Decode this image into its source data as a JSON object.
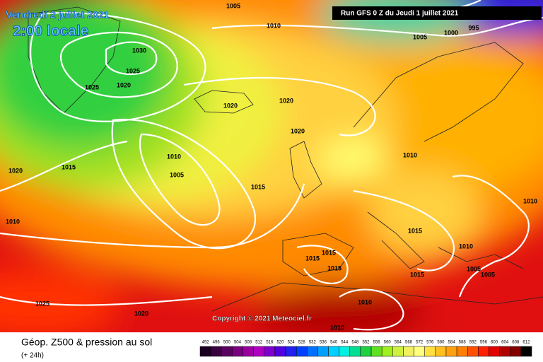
{
  "header": {
    "date": "Vendredi 2 juillet 2021",
    "time": "2:00 locale",
    "run": "Run GFS 0 Z du Jeudi 1 juillet 2021"
  },
  "footer": {
    "title": "Géop. Z500 & pression au sol",
    "subtitle": "(+ 24h)",
    "copyright": "Copyright © 2021 Meteociel.fr"
  },
  "legend": {
    "levels": [
      492,
      496,
      500,
      504,
      508,
      512,
      516,
      520,
      524,
      528,
      532,
      536,
      540,
      544,
      548,
      552,
      556,
      560,
      564,
      568,
      572,
      576,
      580,
      584,
      588,
      592,
      596,
      600,
      604,
      608,
      612
    ],
    "colors": [
      "#1a0020",
      "#3a0040",
      "#5a0060",
      "#7a0080",
      "#9a00a0",
      "#b000c0",
      "#8000d0",
      "#5000e0",
      "#2020f0",
      "#0040ff",
      "#0070ff",
      "#00a0ff",
      "#00d0ff",
      "#00f0e0",
      "#00e090",
      "#20d040",
      "#60e020",
      "#a0f020",
      "#d0f040",
      "#f0f060",
      "#ffff80",
      "#ffe040",
      "#ffc020",
      "#ffa010",
      "#ff8000",
      "#ff5000",
      "#ff2000",
      "#e00000",
      "#b00000",
      "#800000",
      "#000000"
    ]
  },
  "isobar_labels": [
    1005,
    1010,
    1030,
    1025,
    1025,
    1020,
    1020,
    1020,
    1020,
    1010,
    1005,
    1015,
    1020,
    1010,
    1015,
    1010,
    1010,
    1015,
    1010,
    1015,
    1015,
    1015,
    1015,
    1005,
    1005,
    1025,
    1020,
    1010,
    1010,
    1005,
    1000,
    995
  ]
}
